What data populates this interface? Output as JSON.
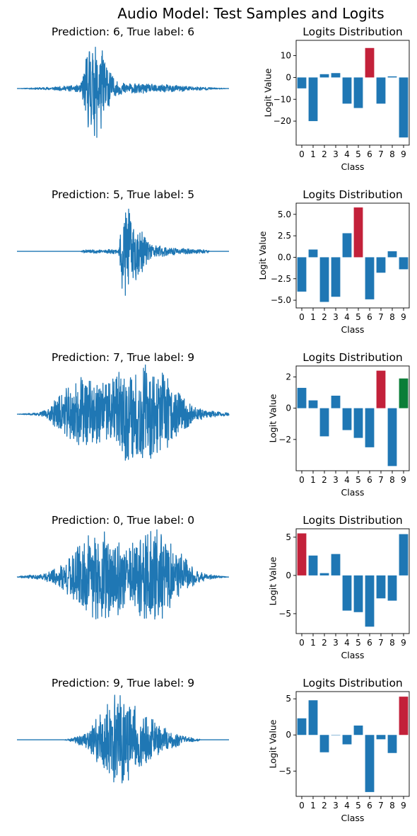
{
  "title": "Audio Model: Test Samples and Logits",
  "colors": {
    "bar": "#1f77b4",
    "predicted": "#c3213a",
    "true_label": "#0b7e38",
    "waveform": "#1f77b4"
  },
  "chart_data": [
    {
      "type": "line",
      "panel": "waveform",
      "title": "Prediction: 6, True label: 6",
      "axes_visible": false,
      "envelope": [
        [
          0.0,
          0.0
        ],
        [
          0.1,
          0.02
        ],
        [
          0.2,
          0.04
        ],
        [
          0.3,
          0.08
        ],
        [
          0.34,
          0.95
        ],
        [
          0.38,
          1.0
        ],
        [
          0.42,
          0.7
        ],
        [
          0.46,
          0.15
        ],
        [
          0.55,
          0.1
        ],
        [
          0.7,
          0.08
        ],
        [
          0.85,
          0.04
        ],
        [
          1.0,
          0.0
        ]
      ],
      "seed": 11
    },
    {
      "type": "bar",
      "panel": "logits",
      "title": "Logits Distribution",
      "xlabel": "Class",
      "ylabel": "Logit Value",
      "categories": [
        "0",
        "1",
        "2",
        "3",
        "4",
        "5",
        "6",
        "7",
        "8",
        "9"
      ],
      "values": [
        -5,
        -20,
        1.5,
        2,
        -12,
        -14,
        13.5,
        -12,
        0.5,
        -27.5
      ],
      "predicted": 6,
      "true_label": 6,
      "ylim": [
        -31,
        17
      ],
      "yticks": [
        -20,
        -10,
        0,
        10
      ],
      "ytick_labels": [
        "−20",
        "−10",
        "0",
        "10"
      ]
    },
    {
      "type": "line",
      "panel": "waveform",
      "title": "Prediction: 5, True label: 5",
      "axes_visible": false,
      "envelope": [
        [
          0.0,
          0.0
        ],
        [
          0.3,
          0.0
        ],
        [
          0.31,
          0.03
        ],
        [
          0.48,
          0.05
        ],
        [
          0.5,
          0.95
        ],
        [
          0.52,
          0.88
        ],
        [
          0.58,
          0.45
        ],
        [
          0.64,
          0.15
        ],
        [
          0.72,
          0.08
        ],
        [
          0.8,
          0.05
        ],
        [
          0.9,
          0.03
        ],
        [
          0.91,
          0.0
        ],
        [
          1.0,
          0.0
        ]
      ],
      "seed": 23
    },
    {
      "type": "bar",
      "panel": "logits",
      "title": "Logits Distribution",
      "xlabel": "Class",
      "ylabel": "Logit Value",
      "categories": [
        "0",
        "1",
        "2",
        "3",
        "4",
        "5",
        "6",
        "7",
        "8",
        "9"
      ],
      "values": [
        -4.0,
        0.9,
        -5.2,
        -4.6,
        2.8,
        5.8,
        -4.9,
        -1.8,
        0.7,
        -1.4
      ],
      "predicted": 5,
      "true_label": 5,
      "ylim": [
        -5.9,
        6.3
      ],
      "yticks": [
        -5.0,
        -2.5,
        0.0,
        2.5,
        5.0
      ],
      "ytick_labels": [
        "−5.0",
        "−2.5",
        "0.0",
        "2.5",
        "5.0"
      ]
    },
    {
      "type": "line",
      "panel": "waveform",
      "title": "Prediction: 7, True label: 9",
      "axes_visible": false,
      "envelope": [
        [
          0.0,
          0.0
        ],
        [
          0.1,
          0.03
        ],
        [
          0.15,
          0.1
        ],
        [
          0.2,
          0.4
        ],
        [
          0.3,
          0.75
        ],
        [
          0.4,
          0.65
        ],
        [
          0.5,
          0.9
        ],
        [
          0.6,
          1.0
        ],
        [
          0.7,
          0.75
        ],
        [
          0.78,
          0.4
        ],
        [
          0.85,
          0.12
        ],
        [
          0.92,
          0.06
        ],
        [
          1.0,
          0.03
        ]
      ],
      "seed": 37
    },
    {
      "type": "bar",
      "panel": "logits",
      "title": "Logits Distribution",
      "xlabel": "Class",
      "ylabel": "Logit Value",
      "categories": [
        "0",
        "1",
        "2",
        "3",
        "4",
        "5",
        "6",
        "7",
        "8",
        "9"
      ],
      "values": [
        1.3,
        0.5,
        -1.8,
        0.8,
        -1.4,
        -1.9,
        -2.5,
        2.4,
        -3.7,
        1.9
      ],
      "predicted": 7,
      "true_label": 9,
      "ylim": [
        -4.0,
        2.7
      ],
      "yticks": [
        -2,
        0,
        2
      ],
      "ytick_labels": [
        "−2",
        "0",
        "2"
      ]
    },
    {
      "type": "line",
      "panel": "waveform",
      "title": "Prediction: 0, True label: 0",
      "axes_visible": false,
      "envelope": [
        [
          0.0,
          0.0
        ],
        [
          0.03,
          0.03
        ],
        [
          0.12,
          0.05
        ],
        [
          0.2,
          0.2
        ],
        [
          0.3,
          0.7
        ],
        [
          0.42,
          1.0
        ],
        [
          0.52,
          0.6
        ],
        [
          0.6,
          0.9
        ],
        [
          0.66,
          0.95
        ],
        [
          0.75,
          0.55
        ],
        [
          0.85,
          0.12
        ],
        [
          0.92,
          0.04
        ],
        [
          1.0,
          0.0
        ]
      ],
      "seed": 41
    },
    {
      "type": "bar",
      "panel": "logits",
      "title": "Logits Distribution",
      "xlabel": "Class",
      "ylabel": "Logit Value",
      "categories": [
        "0",
        "1",
        "2",
        "3",
        "4",
        "5",
        "6",
        "7",
        "8",
        "9"
      ],
      "values": [
        5.5,
        2.6,
        0.3,
        2.8,
        -4.6,
        -4.8,
        -6.7,
        -3.0,
        -3.3,
        5.4
      ],
      "predicted": 0,
      "true_label": 0,
      "ylim": [
        -7.6,
        6.1
      ],
      "yticks": [
        -5,
        0,
        5
      ],
      "ytick_labels": [
        "−5",
        "0",
        "5"
      ]
    },
    {
      "type": "line",
      "panel": "waveform",
      "title": "Prediction: 9, True label: 9",
      "axes_visible": false,
      "envelope": [
        [
          0.0,
          0.0
        ],
        [
          0.22,
          0.0
        ],
        [
          0.25,
          0.03
        ],
        [
          0.32,
          0.15
        ],
        [
          0.4,
          0.55
        ],
        [
          0.48,
          1.0
        ],
        [
          0.55,
          0.7
        ],
        [
          0.62,
          0.45
        ],
        [
          0.7,
          0.25
        ],
        [
          0.78,
          0.08
        ],
        [
          0.86,
          0.02
        ],
        [
          0.87,
          0.0
        ],
        [
          1.0,
          0.0
        ]
      ],
      "seed": 59
    },
    {
      "type": "bar",
      "panel": "logits",
      "title": "Logits Distribution",
      "xlabel": "Class",
      "ylabel": "Logit Value",
      "categories": [
        "0",
        "1",
        "2",
        "3",
        "4",
        "5",
        "6",
        "7",
        "8",
        "9"
      ],
      "values": [
        2.3,
        4.8,
        -2.4,
        0.0,
        -1.3,
        1.3,
        -7.9,
        -0.6,
        -2.5,
        5.3
      ],
      "predicted": 9,
      "true_label": 9,
      "ylim": [
        -8.5,
        6.0
      ],
      "yticks": [
        -5,
        0,
        5
      ],
      "ytick_labels": [
        "−5",
        "0",
        "5"
      ]
    }
  ]
}
